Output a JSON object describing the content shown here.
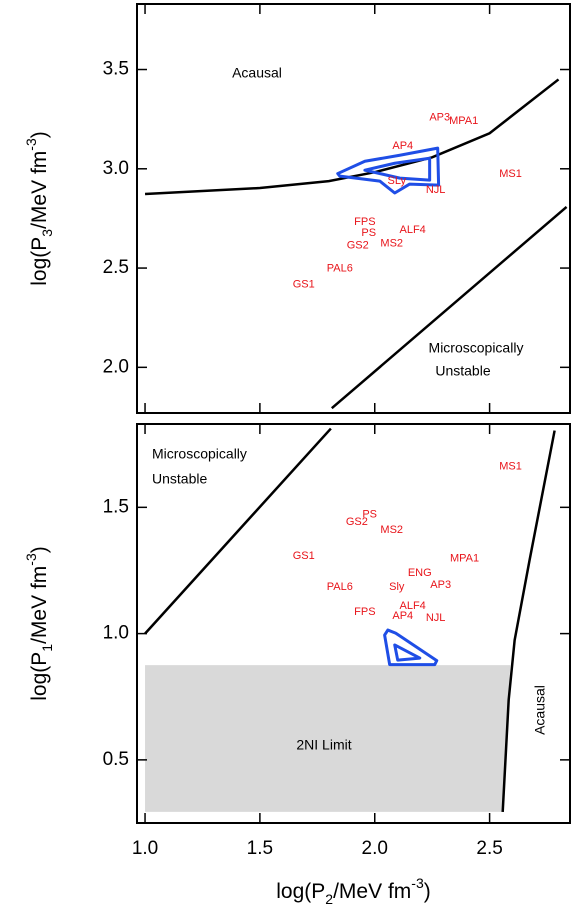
{
  "chart_data": [
    {
      "type": "line",
      "xlim": [
        0.965,
        2.85
      ],
      "ylim": [
        1.77,
        3.83
      ],
      "xticks": [
        1,
        1.5,
        2,
        2.5
      ],
      "yticks": [
        {
          "value": 2,
          "label": "2.0"
        },
        2.5,
        {
          "value": 3,
          "label": "3.0"
        },
        3.5
      ],
      "ylabel": [
        "log(P",
        "3",
        "/MeV fm",
        "-3",
        ")"
      ],
      "annotations": [
        "Acausal",
        "Microscopically",
        "Unstable"
      ],
      "curves": [
        {
          "color": "#000000",
          "x": [
            1.0,
            1.5,
            1.8,
            2.0,
            2.25,
            2.5,
            2.8
          ],
          "y": [
            2.873,
            2.903,
            2.938,
            2.983,
            3.058,
            3.179,
            3.45
          ]
        },
        {
          "color": "#000000",
          "x": [
            1.813,
            2.835
          ],
          "y": [
            1.794,
            2.808
          ]
        }
      ],
      "contours": [
        {
          "color": "#1f4ee6",
          "x": [
            1.839,
            1.957,
            2.109,
            2.274,
            2.278,
            2.152,
            2.087,
            2.022,
            1.848
          ],
          "y": [
            2.976,
            3.038,
            3.068,
            3.104,
            2.918,
            2.923,
            2.878,
            2.938,
            2.963
          ]
        },
        {
          "color": "#1f4ee6",
          "x": [
            1.957,
            2.087,
            2.239,
            2.239,
            2.109
          ],
          "y": [
            2.993,
            3.028,
            3.053,
            2.943,
            2.953
          ]
        }
      ],
      "points": {
        "color": "#e8141a",
        "labels": [
          "AP3",
          "MPA1",
          "AP4",
          "SLy",
          "NJL",
          "MS1",
          "FPS",
          "PS",
          "ALF4",
          "GS2",
          "MS2",
          "PAL6",
          "GS1"
        ],
        "x": [
          2.283,
          2.387,
          2.122,
          2.096,
          2.265,
          2.591,
          1.957,
          1.974,
          2.165,
          1.926,
          2.074,
          1.848,
          1.691
        ],
        "y": [
          3.259,
          3.239,
          3.114,
          2.938,
          2.893,
          2.973,
          2.732,
          2.677,
          2.692,
          2.612,
          2.622,
          2.497,
          2.417
        ]
      }
    },
    {
      "type": "line",
      "xlim": [
        0.965,
        2.85
      ],
      "ylim": [
        0.25,
        1.83
      ],
      "xticks": [
        {
          "value": 1,
          "label": "1.0"
        },
        1.5,
        {
          "value": 2,
          "label": "2.0"
        },
        2.5
      ],
      "yticks": [
        0.5,
        {
          "value": 1,
          "label": "1.0"
        },
        1.5
      ],
      "xlabel": [
        "log(P",
        "2",
        "/MeV fm",
        "-3",
        ")"
      ],
      "ylabel": [
        "log(P",
        "1",
        "/MeV fm",
        "-3",
        ")"
      ],
      "annotations": [
        "Microscopically",
        "Unstable",
        "2NI Limit",
        "Acausal"
      ],
      "region": {
        "color": "#d9d9d9",
        "x": [
          1.0,
          1.0,
          2.59,
          2.557
        ],
        "y": [
          0.294,
          0.875,
          0.875,
          0.294
        ]
      },
      "curves": [
        {
          "color": "#000000",
          "x": [
            1.0,
            1.809
          ],
          "y": [
            1.0,
            1.812
          ]
        },
        {
          "color": "#000000",
          "x": [
            2.557,
            2.583,
            2.609,
            2.674,
            2.783
          ],
          "y": [
            0.294,
            0.737,
            0.974,
            1.291,
            1.804
          ]
        }
      ],
      "contours": [
        {
          "color": "#1f4ee6",
          "x": [
            2.043,
            2.057,
            2.091,
            2.27,
            2.261,
            2.065
          ],
          "y": [
            0.994,
            1.014,
            1.002,
            0.893,
            0.877,
            0.877
          ]
        },
        {
          "color": "#1f4ee6",
          "x": [
            2.087,
            2.196,
            2.1
          ],
          "y": [
            0.955,
            0.903,
            0.895
          ]
        }
      ],
      "points": {
        "color": "#e8141a",
        "labels": [
          "MS1",
          "PS",
          "GS2",
          "MS2",
          "GS1",
          "MPA1",
          "ENG",
          "AP3",
          "PAL6",
          "Sly",
          "ALF4",
          "FPS",
          "AP4",
          "NJL"
        ],
        "x": [
          2.591,
          1.978,
          1.922,
          2.074,
          1.691,
          2.391,
          2.196,
          2.287,
          1.848,
          2.096,
          2.165,
          1.957,
          2.122,
          2.265
        ],
        "y": [
          1.662,
          1.472,
          1.441,
          1.409,
          1.306,
          1.298,
          1.239,
          1.192,
          1.184,
          1.184,
          1.109,
          1.085,
          1.069,
          1.061
        ]
      }
    }
  ]
}
